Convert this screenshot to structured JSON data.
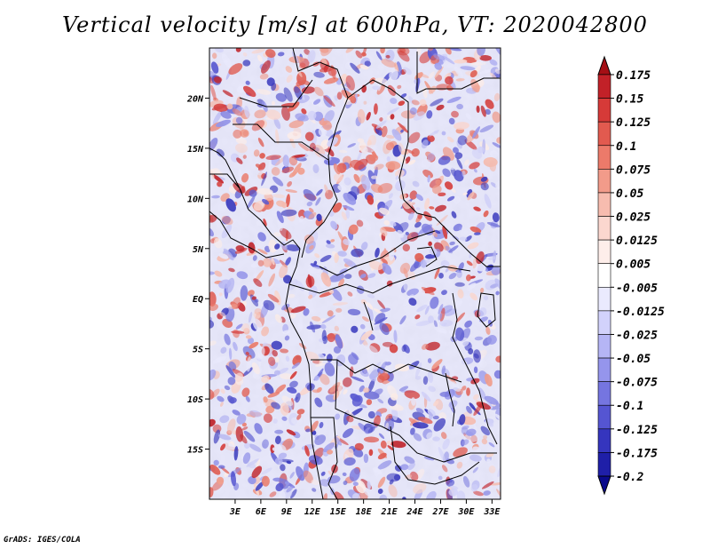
{
  "title": "Vertical velocity [m/s] at 600hPa, VT: 2020042800",
  "footer": "GrADS: IGES/COLA",
  "map": {
    "lon_range": [
      0,
      34
    ],
    "lat_range": [
      -20,
      25
    ],
    "lon_ticks": [
      {
        "value": 3,
        "label": "3E"
      },
      {
        "value": 6,
        "label": "6E"
      },
      {
        "value": 9,
        "label": "9E"
      },
      {
        "value": 12,
        "label": "12E"
      },
      {
        "value": 15,
        "label": "15E"
      },
      {
        "value": 18,
        "label": "18E"
      },
      {
        "value": 21,
        "label": "21E"
      },
      {
        "value": 24,
        "label": "24E"
      },
      {
        "value": 27,
        "label": "27E"
      },
      {
        "value": 30,
        "label": "30E"
      },
      {
        "value": 33,
        "label": "33E"
      }
    ],
    "lat_ticks": [
      {
        "value": 20,
        "label": "20N"
      },
      {
        "value": 15,
        "label": "15N"
      },
      {
        "value": 10,
        "label": "10N"
      },
      {
        "value": 5,
        "label": "5N"
      },
      {
        "value": 0,
        "label": "EQ"
      },
      {
        "value": -5,
        "label": "5S"
      },
      {
        "value": -10,
        "label": "10S"
      },
      {
        "value": -15,
        "label": "15S"
      }
    ]
  },
  "colorbar": {
    "labels": [
      "0.175",
      "0.15",
      "0.125",
      "0.1",
      "0.075",
      "0.05",
      "0.025",
      "0.0125",
      "0.005",
      "-0.005",
      "-0.0125",
      "-0.025",
      "-0.05",
      "-0.075",
      "-0.1",
      "-0.125",
      "-0.175",
      "-0.2"
    ],
    "colors": [
      "#a50f15",
      "#c22128",
      "#d63a38",
      "#e25a4f",
      "#ec7a6a",
      "#f29b8a",
      "#f7bcaf",
      "#fbd7cf",
      "#feeeea",
      "#ffffff",
      "#eaeafe",
      "#d2d2fb",
      "#b5b5f5",
      "#9595ec",
      "#7575e0",
      "#5555d2",
      "#3535be",
      "#1f1fa8",
      "#0a0a8c"
    ]
  }
}
